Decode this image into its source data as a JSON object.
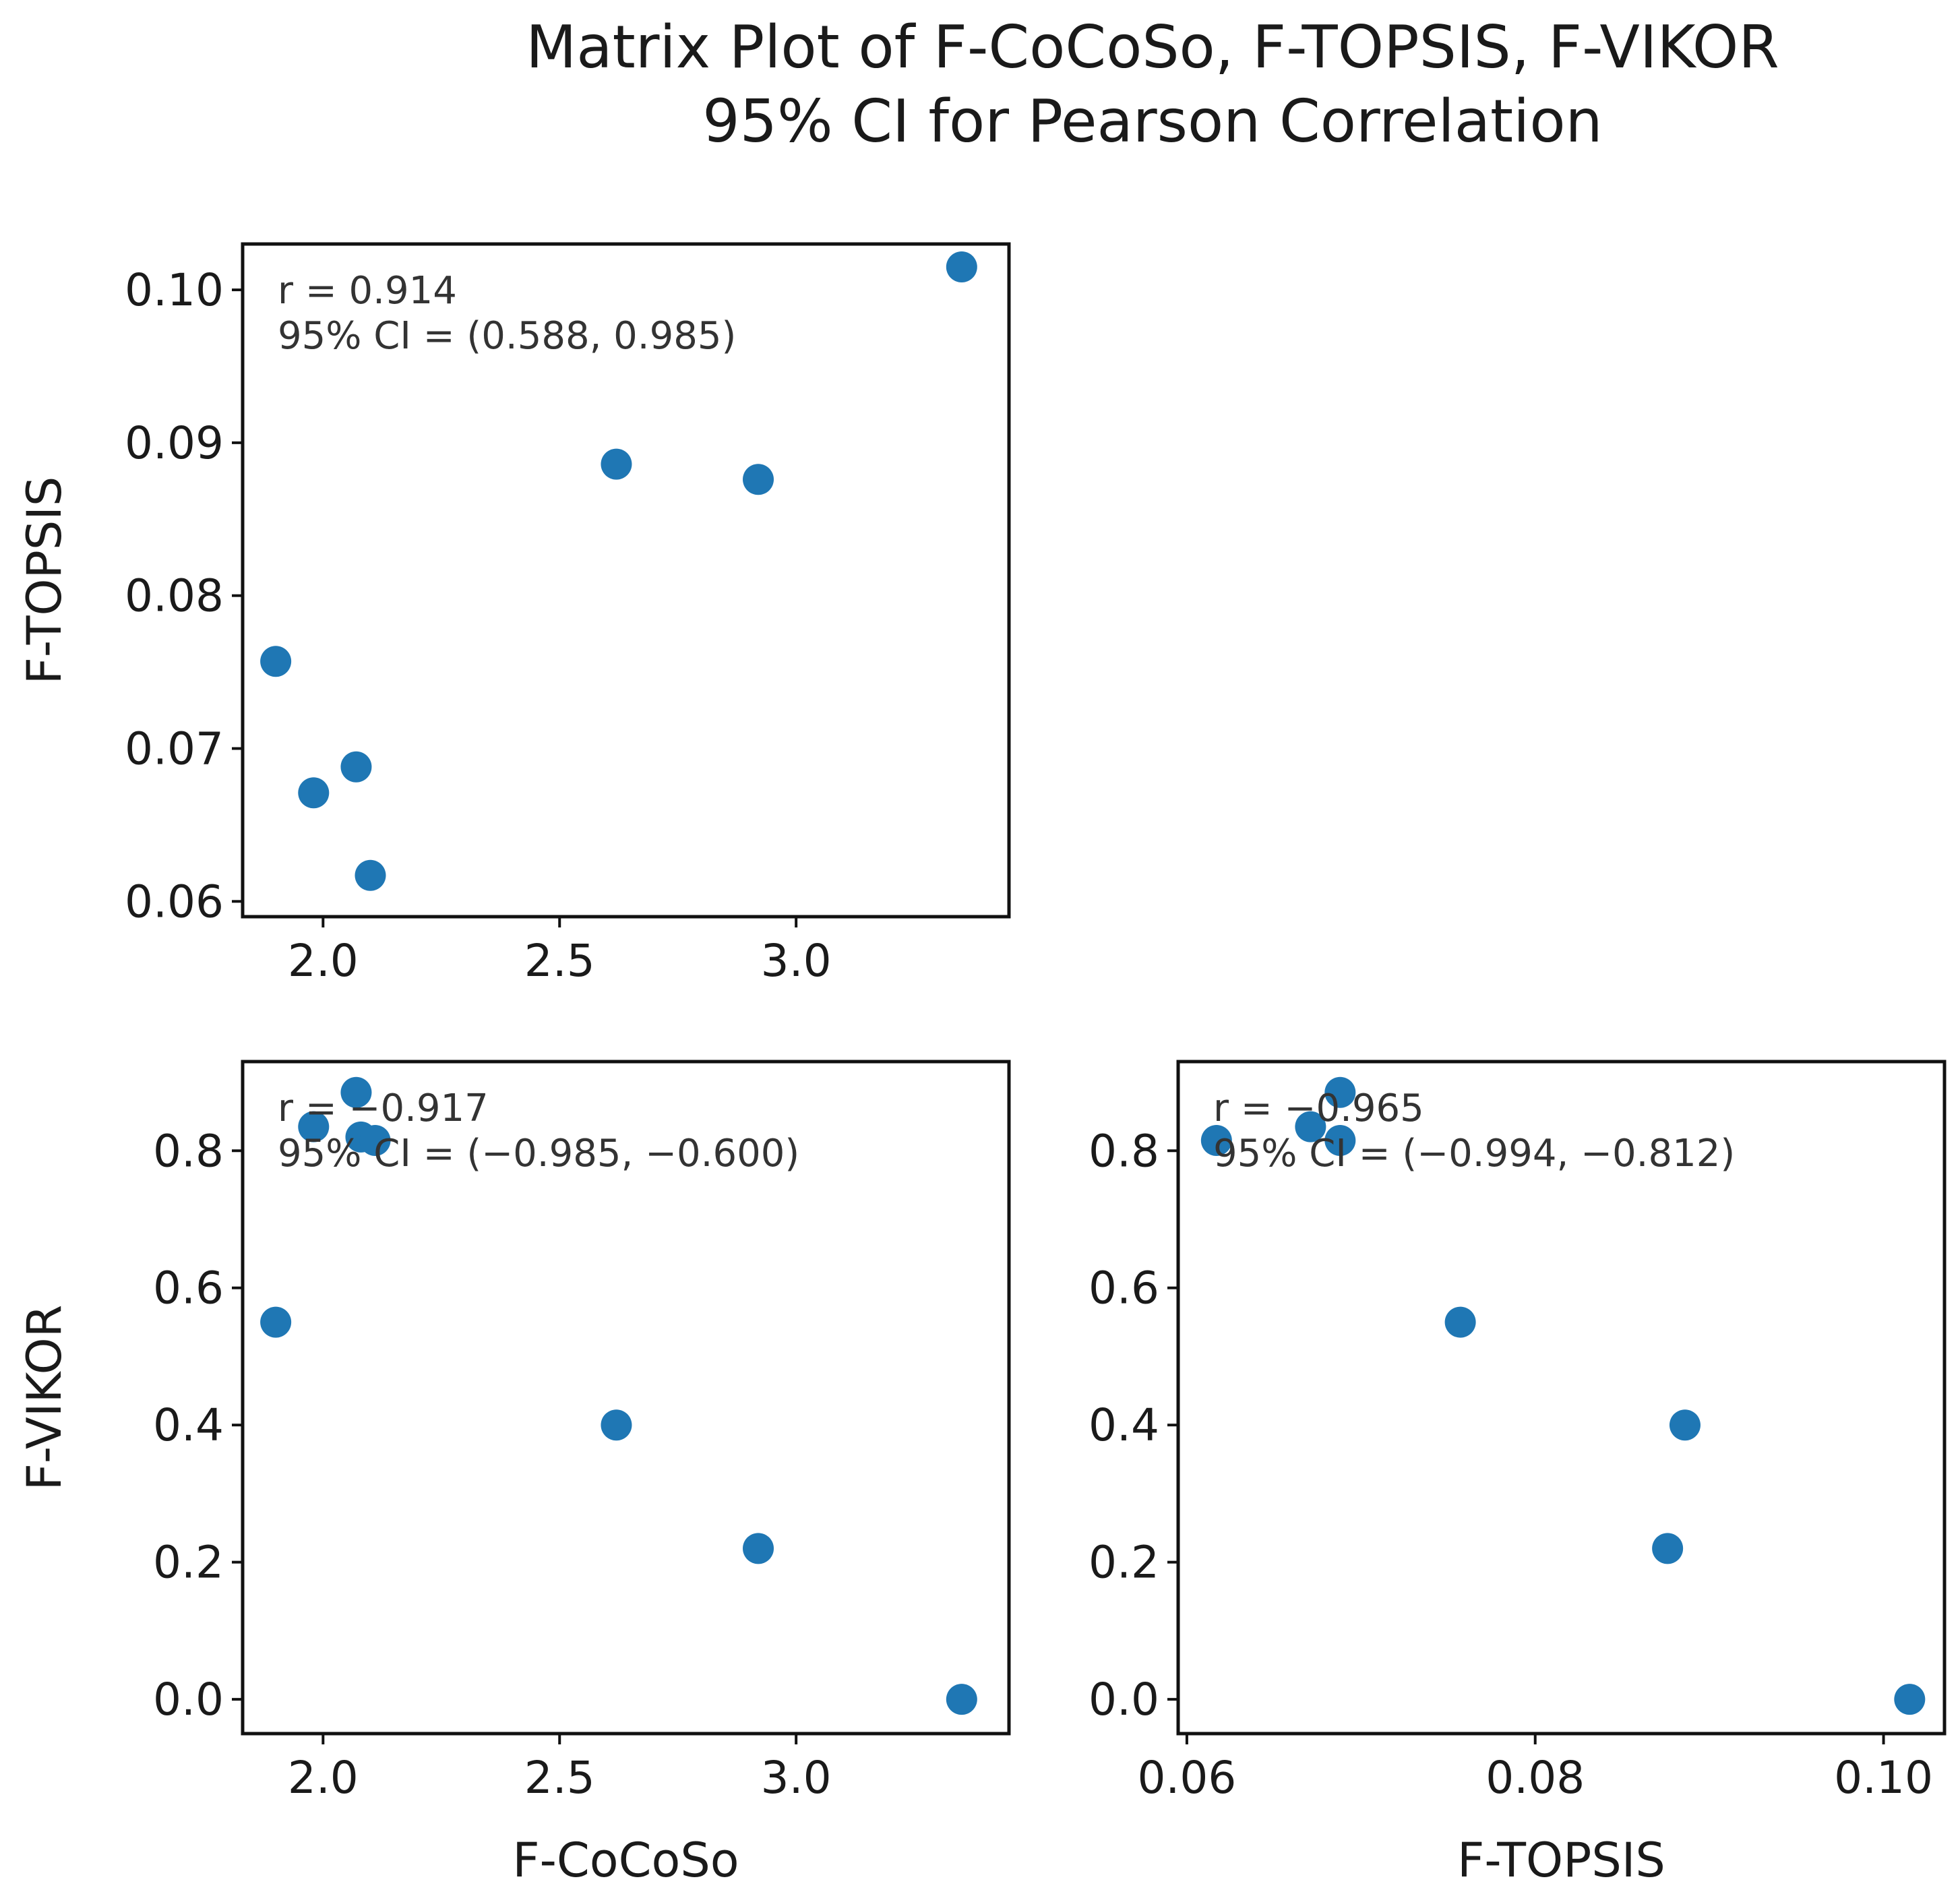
{
  "figure": {
    "title_line1": "Matrix Plot of F-CoCoSo, F-TOPSIS, F-VIKOR",
    "title_line2": "95% CI for Pearson Correlation"
  },
  "colors": {
    "marker": "#1f77b4"
  },
  "chart_data": [
    {
      "type": "scatter",
      "name": "panel-cocoso-vs-topsis",
      "xlabel": "",
      "ylabel": "F-TOPSIS",
      "xlim": [
        1.83,
        3.45
      ],
      "ylim": [
        0.059,
        0.103
      ],
      "xticks": [
        2.0,
        2.5,
        3.0
      ],
      "xtick_labels": [
        "2.0",
        "2.5",
        "3.0"
      ],
      "yticks": [
        0.06,
        0.07,
        0.08,
        0.09,
        0.1
      ],
      "ytick_labels": [
        "0.06",
        "0.07",
        "0.08",
        "0.09",
        "0.10"
      ],
      "points": [
        [
          3.35,
          0.1015
        ],
        [
          2.62,
          0.0886
        ],
        [
          2.92,
          0.0876
        ],
        [
          1.9,
          0.0757
        ],
        [
          2.07,
          0.0688
        ],
        [
          1.98,
          0.0671
        ],
        [
          2.1,
          0.0617
        ]
      ],
      "annotation_r": "r = 0.914",
      "annotation_ci": "95% CI = (0.588, 0.985)"
    },
    {
      "type": "scatter",
      "name": "panel-cocoso-vs-vikor",
      "xlabel": "F-CoCoSo",
      "ylabel": "F-VIKOR",
      "xlim": [
        1.83,
        3.45
      ],
      "ylim": [
        -0.05,
        0.93
      ],
      "xticks": [
        2.0,
        2.5,
        3.0
      ],
      "xtick_labels": [
        "2.0",
        "2.5",
        "3.0"
      ],
      "yticks": [
        0.0,
        0.2,
        0.4,
        0.6,
        0.8
      ],
      "ytick_labels": [
        "0.0",
        "0.2",
        "0.4",
        "0.6",
        "0.8"
      ],
      "points": [
        [
          2.07,
          0.885
        ],
        [
          1.98,
          0.835
        ],
        [
          2.08,
          0.82
        ],
        [
          2.11,
          0.815
        ],
        [
          1.9,
          0.55
        ],
        [
          2.62,
          0.4
        ],
        [
          2.92,
          0.22
        ],
        [
          3.35,
          0.0
        ]
      ],
      "annotation_r": "r = −0.917",
      "annotation_ci": "95% CI = (−0.985, −0.600)"
    },
    {
      "type": "scatter",
      "name": "panel-topsis-vs-vikor",
      "xlabel": "F-TOPSIS",
      "ylabel": "",
      "xlim": [
        0.0595,
        0.1035
      ],
      "ylim": [
        -0.05,
        0.93
      ],
      "xticks": [
        0.06,
        0.08,
        0.1
      ],
      "xtick_labels": [
        "0.06",
        "0.08",
        "0.10"
      ],
      "yticks": [
        0.0,
        0.2,
        0.4,
        0.6,
        0.8
      ],
      "ytick_labels": [
        "0.0",
        "0.2",
        "0.4",
        "0.6",
        "0.8"
      ],
      "points": [
        [
          0.0617,
          0.815
        ],
        [
          0.0671,
          0.835
        ],
        [
          0.0688,
          0.885
        ],
        [
          0.0688,
          0.815
        ],
        [
          0.0757,
          0.55
        ],
        [
          0.0886,
          0.4
        ],
        [
          0.0876,
          0.22
        ],
        [
          0.1015,
          0.0
        ]
      ],
      "annotation_r": "r = −0.965",
      "annotation_ci": "95% CI = (−0.994, −0.812)"
    }
  ]
}
